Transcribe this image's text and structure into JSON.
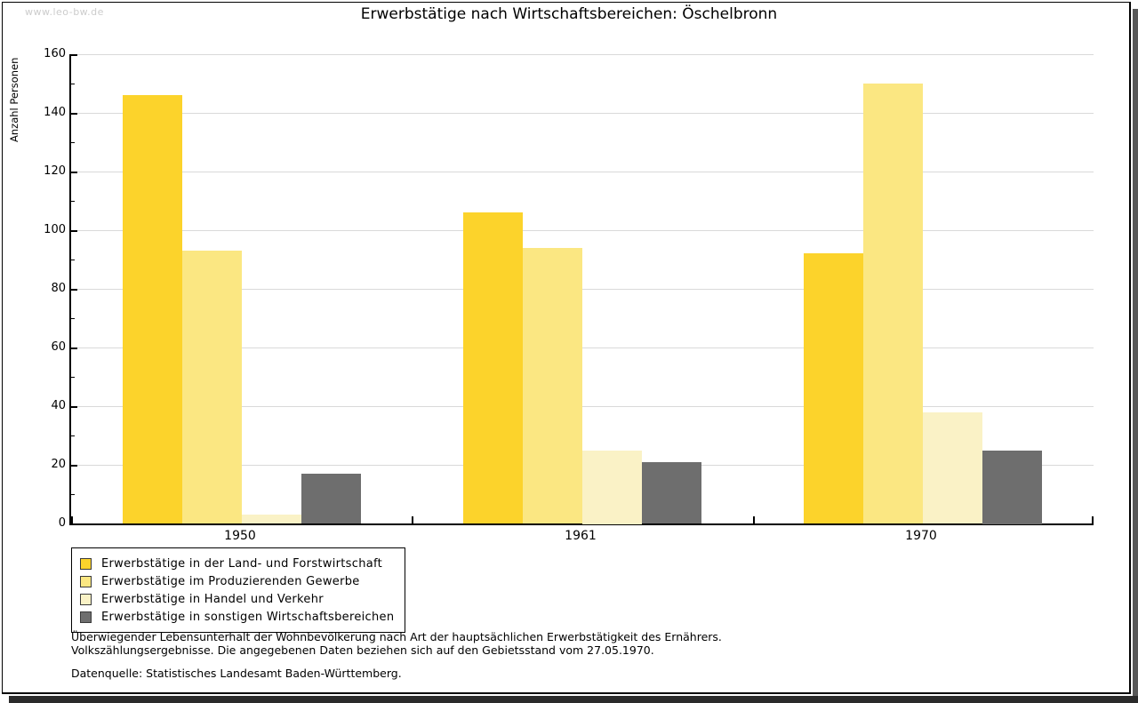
{
  "watermark": "www.leo-bw.de",
  "title": "Erwerbstätige nach Wirtschaftsbereichen: Öschelbronn",
  "chart_data": {
    "type": "bar",
    "title": "Erwerbstätige nach Wirtschaftsbereichen: Öschelbronn",
    "xlabel": "",
    "ylabel": "Anzahl Personen",
    "categories": [
      "1950",
      "1961",
      "1970"
    ],
    "series": [
      {
        "name": "Erwerbstätige in der Land- und Forstwirtschaft",
        "color": "#fcd32b",
        "values": [
          146,
          106,
          92
        ]
      },
      {
        "name": "Erwerbstätige im Produzierenden Gewerbe",
        "color": "#fbe782",
        "values": [
          93,
          94,
          150
        ]
      },
      {
        "name": "Erwerbstätige in Handel und Verkehr",
        "color": "#faf2c6",
        "values": [
          3,
          25,
          38
        ]
      },
      {
        "name": "Erwerbstätige in sonstigen Wirtschaftsbereichen",
        "color": "#6e6e6e",
        "values": [
          17,
          21,
          25
        ]
      }
    ],
    "ylim": [
      0,
      160
    ],
    "yticks": [
      0,
      20,
      40,
      60,
      80,
      100,
      120,
      140,
      160
    ],
    "y_minor_step": 10,
    "grid": true,
    "gridline_color": "#d9d9d9",
    "legend_position": "bottom-left"
  },
  "footer": {
    "line1": "Überwiegender Lebensunterhalt der Wohnbevölkerung nach Art der hauptsächlichen Erwerbstätigkeit des Ernährers.",
    "line2": "Volkszählungsergebnisse. Die angegebenen Daten beziehen sich auf den Gebietsstand vom 27.05.1970.",
    "source": "Datenquelle: Statistisches Landesamt Baden-Württemberg."
  }
}
